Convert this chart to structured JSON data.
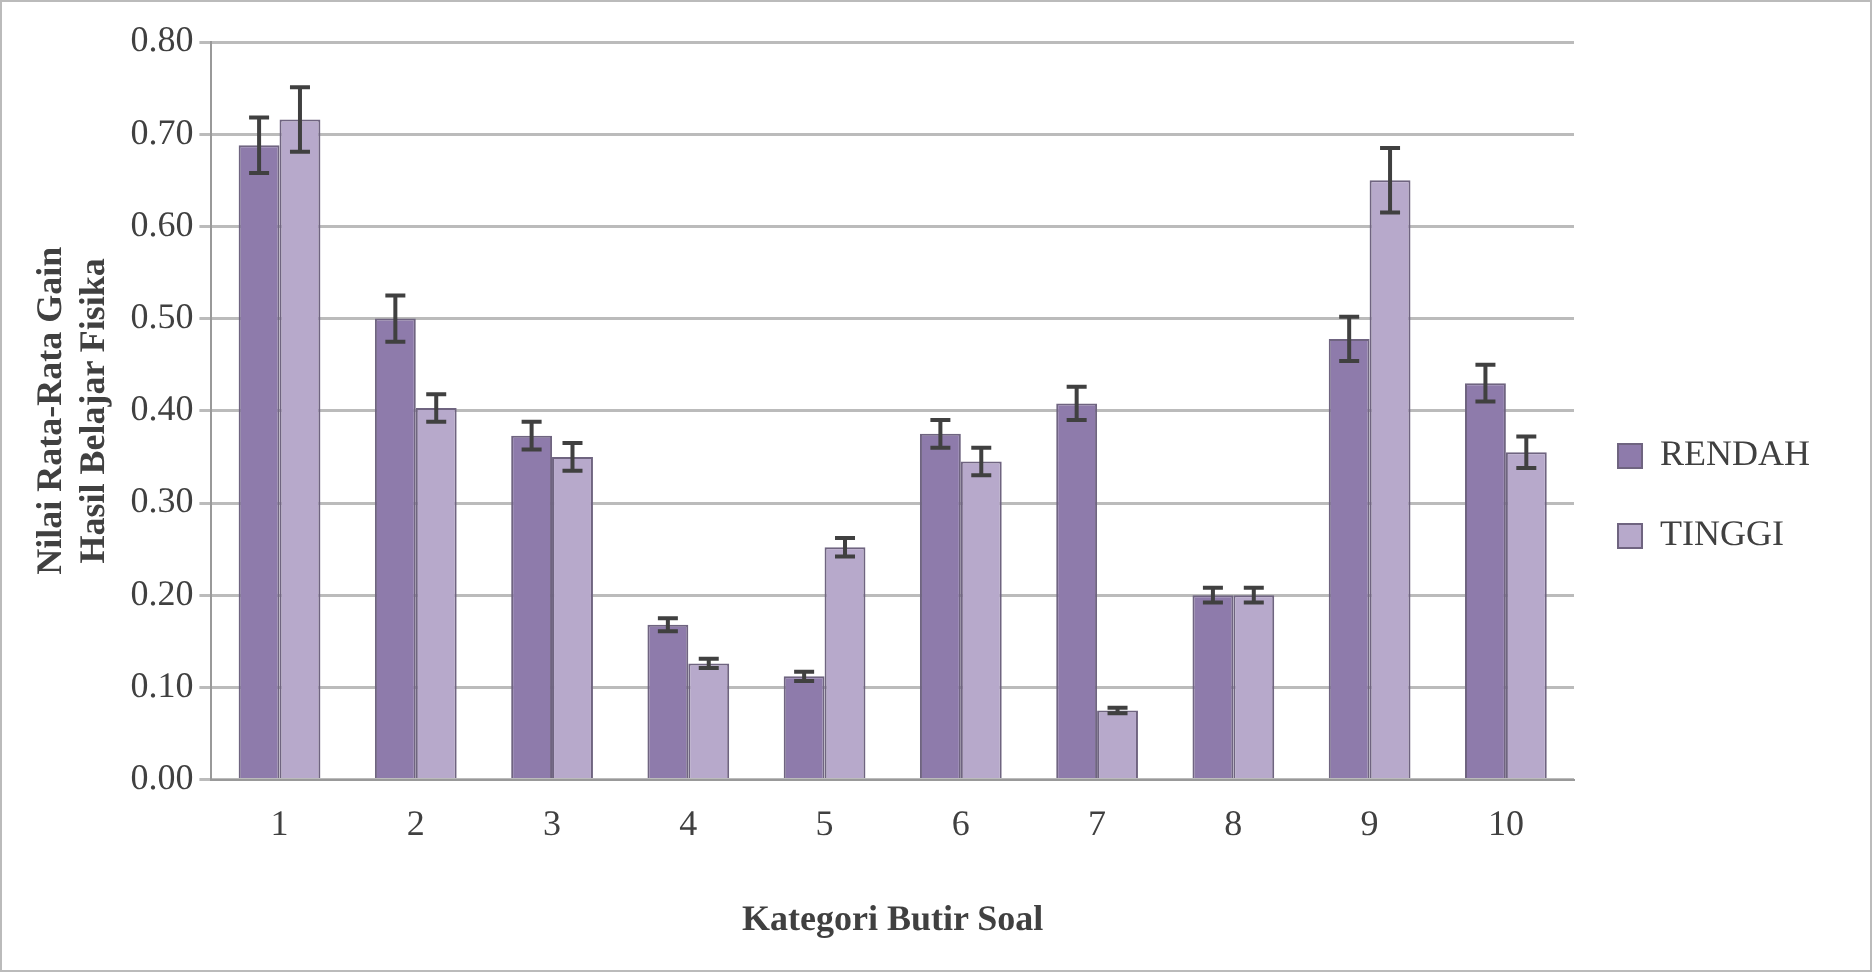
{
  "chart_data": {
    "type": "bar",
    "xlabel": "Kategori Butir Soal",
    "ylabel": "Nilai Rata-Rata Gain Hasil Belajar Fisika",
    "categories": [
      "1",
      "2",
      "3",
      "4",
      "5",
      "6",
      "7",
      "8",
      "9",
      "10"
    ],
    "series": [
      {
        "name": "RENDAH",
        "color": "#8e7bab",
        "values": [
          0.688,
          0.5,
          0.373,
          0.168,
          0.112,
          0.375,
          0.408,
          0.2,
          0.478,
          0.43
        ],
        "errors": [
          0.03,
          0.025,
          0.015,
          0.007,
          0.005,
          0.015,
          0.018,
          0.008,
          0.024,
          0.02
        ]
      },
      {
        "name": "TINGGI",
        "color": "#b7a9cb",
        "values": [
          0.716,
          0.403,
          0.35,
          0.126,
          0.252,
          0.345,
          0.075,
          0.2,
          0.65,
          0.355
        ],
        "errors": [
          0.035,
          0.015,
          0.015,
          0.005,
          0.01,
          0.015,
          0.003,
          0.008,
          0.035,
          0.017
        ]
      }
    ],
    "ylim": [
      0,
      0.8
    ],
    "yticks": [
      {
        "value": 0,
        "label": "0.00"
      },
      {
        "value": 0.1,
        "label": "0.10"
      },
      {
        "value": 0.2,
        "label": "0.20"
      },
      {
        "value": 0.3,
        "label": "0.30"
      },
      {
        "value": 0.4,
        "label": "0.40"
      },
      {
        "value": 0.5,
        "label": "0.50"
      },
      {
        "value": 0.6,
        "label": "0.60"
      },
      {
        "value": 0.7,
        "label": "0.70"
      },
      {
        "value": 0.8,
        "label": "0.80"
      }
    ],
    "grid": "y",
    "legend": "right"
  }
}
